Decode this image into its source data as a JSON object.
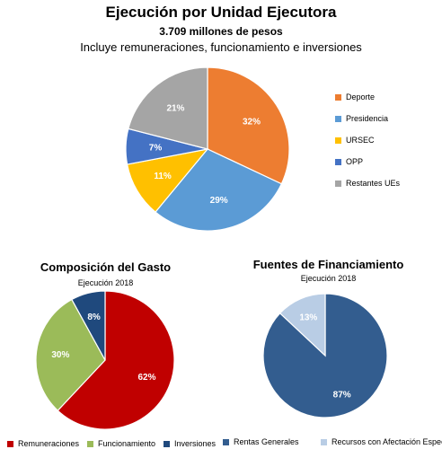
{
  "chart_data": [
    {
      "type": "pie",
      "title": "Ejecución por Unidad Ejecutora",
      "subtitle": "3.709 millones de pesos",
      "note": "Incluye remuneraciones, funcionamiento e inversiones",
      "legend_position": "right",
      "slices": [
        {
          "name": "Deporte",
          "value": 32,
          "label": "32%",
          "color": "#ED7D31"
        },
        {
          "name": "Presidencia",
          "value": 29,
          "label": "29%",
          "color": "#5B9BD5"
        },
        {
          "name": "URSEC",
          "value": 11,
          "label": "11%",
          "color": "#FFC000"
        },
        {
          "name": "OPP",
          "value": 7,
          "label": "7%",
          "color": "#4472C4"
        },
        {
          "name": "Restantes UEs",
          "value": 21,
          "label": "21%",
          "color": "#A5A5A5"
        }
      ]
    },
    {
      "type": "pie",
      "title": "Composición del Gasto",
      "subtitle": "Ejecución 2018",
      "legend_position": "bottom",
      "slices": [
        {
          "name": "Remuneraciones",
          "value": 62,
          "label": "62%",
          "color": "#C00000"
        },
        {
          "name": "Funcionamiento",
          "value": 30,
          "label": "30%",
          "color": "#9BBB59"
        },
        {
          "name": "Inversiones",
          "value": 8,
          "label": "8%",
          "color": "#1F497D"
        }
      ]
    },
    {
      "type": "pie",
      "title": "Fuentes de Financiamiento",
      "subtitle": "Ejecución 2018",
      "legend_position": "bottom",
      "slices": [
        {
          "name": "Rentas Generales",
          "value": 87,
          "label": "87%",
          "color": "#335D8F"
        },
        {
          "name": "Recursos con Afectación Especial",
          "value": 13,
          "label": "13%",
          "color": "#B9CDE5"
        }
      ]
    }
  ]
}
